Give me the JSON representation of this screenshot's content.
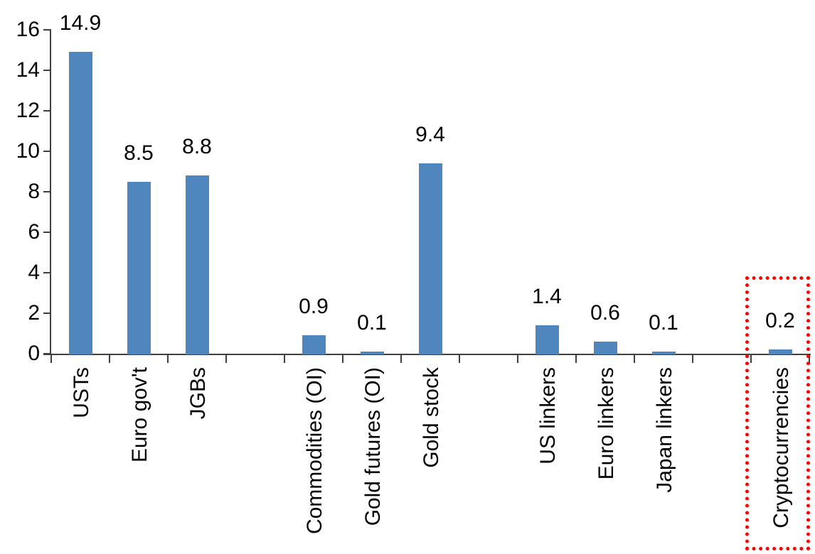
{
  "chart_data": {
    "type": "bar",
    "title": "",
    "xlabel": "",
    "ylabel": "",
    "categories": [
      "USTs",
      "Euro gov't",
      "JGBs",
      "Commodities (OI)",
      "Gold futures (OI)",
      "Gold stock",
      "US linkers",
      "Euro linkers",
      "Japan linkers",
      "Cryptocurrencies"
    ],
    "values": [
      14.9,
      8.5,
      8.8,
      0.9,
      0.1,
      9.4,
      1.4,
      0.6,
      0.1,
      0.2
    ],
    "value_labels": [
      "14.9",
      "8.5",
      "8.8",
      "0.9",
      "0.1",
      "9.4",
      "1.4",
      "0.6",
      "0.1",
      "0.2"
    ],
    "slot_indices": [
      0,
      1,
      2,
      4,
      5,
      6,
      8,
      9,
      10,
      12
    ],
    "total_slots": 13,
    "group_gaps_after": [
      "JGBs",
      "Gold stock",
      "Japan linkers"
    ],
    "ylim": [
      0,
      16
    ],
    "yticks": [
      0,
      2,
      4,
      6,
      8,
      10,
      12,
      14,
      16
    ],
    "grid": false,
    "legend": null,
    "bar_color": "#4f86bd",
    "axis_color": "#3f3f3f",
    "text_color": "#000000",
    "highlight": {
      "category": "Cryptocurrencies",
      "style": "red-dotted-rectangle",
      "color": "#ff0000"
    }
  }
}
